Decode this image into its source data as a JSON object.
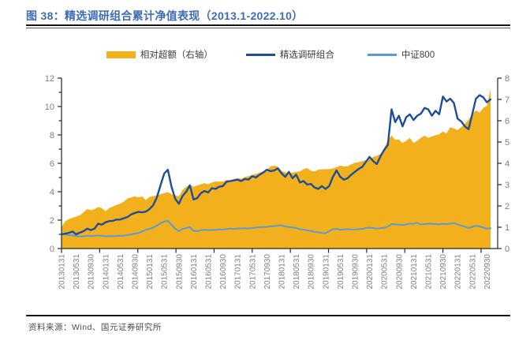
{
  "figure": {
    "title": "图 38：精选调研组合累计净值表现（2013.1-2022.10）",
    "source": "资料来源：Wind、国元证券研究所"
  },
  "colors": {
    "title_blue": "#3E6DB5",
    "excess_area": "#F2B01C",
    "portfolio_line": "#1F4E99",
    "csi800_line": "#5B9BD5",
    "axis_line": "#262626",
    "axis_text": "#7f7f7f"
  },
  "legend": [
    {
      "label": "相对超额（右轴）",
      "type": "area",
      "color": "#F2B01C"
    },
    {
      "label": "精选调研组合",
      "type": "line",
      "color": "#1F4E99"
    },
    {
      "label": "中证800",
      "type": "line",
      "color": "#5B9BD5"
    }
  ],
  "chart_data": {
    "type": "area",
    "title": "精选调研组合累计净值表现（2013.1-2022.10）",
    "x_frequency": "monthly, 2013-01 through 2022-10",
    "x_tick_labels": [
      "20130131",
      "20130531",
      "20130930",
      "20140131",
      "20140531",
      "20140930",
      "20150131",
      "20150531",
      "20150930",
      "20160131",
      "20160531",
      "20160930",
      "20170131",
      "20170531",
      "20170930",
      "20180131",
      "20180531",
      "20180930",
      "20190131",
      "20190531",
      "20190930",
      "20200131",
      "20200531",
      "20200930",
      "20210131",
      "20210531",
      "20210930",
      "20220131",
      "20220531",
      "20220930"
    ],
    "left_axis": {
      "min": 0,
      "max": 12,
      "tick_labels": [
        0,
        2,
        4,
        6,
        8,
        10,
        12
      ]
    },
    "right_axis": {
      "min": 0,
      "max": 8,
      "tick_labels": [
        0,
        1,
        2,
        3,
        4,
        5,
        6,
        7,
        8
      ]
    },
    "grid": false,
    "legend_position": "top-center",
    "series": [
      {
        "name": "相对超额（右轴）",
        "type": "area",
        "axis": "right",
        "color": "#F2B01C",
        "values": [
          1.0,
          1.28,
          1.38,
          1.44,
          1.5,
          1.56,
          1.7,
          1.85,
          1.8,
          1.85,
          1.95,
          1.9,
          1.75,
          1.9,
          1.97,
          2.05,
          2.1,
          2.2,
          2.35,
          2.4,
          2.45,
          2.4,
          2.45,
          2.28,
          2.42,
          2.46,
          2.5,
          2.55,
          2.6,
          2.65,
          2.55,
          2.5,
          2.45,
          2.75,
          2.9,
          3.0,
          2.9,
          2.96,
          3.02,
          3.07,
          3.02,
          3.1,
          3.15,
          3.14,
          3.15,
          3.22,
          3.2,
          3.26,
          3.3,
          3.28,
          3.36,
          3.4,
          3.45,
          3.5,
          3.56,
          3.62,
          3.7,
          3.85,
          3.9,
          3.84,
          3.65,
          3.58,
          3.54,
          3.56,
          3.6,
          3.62,
          3.72,
          3.78,
          3.65,
          3.62,
          3.7,
          3.72,
          3.72,
          3.73,
          3.76,
          3.82,
          3.9,
          3.85,
          3.86,
          3.95,
          4.03,
          4.05,
          4.1,
          4.15,
          4.2,
          4.3,
          4.35,
          4.45,
          4.7,
          5.1,
          5.3,
          5.1,
          5.12,
          4.95,
          5.06,
          5.2,
          4.95,
          5.06,
          5.2,
          5.3,
          5.2,
          5.26,
          5.32,
          5.36,
          5.5,
          5.4,
          5.7,
          5.64,
          5.56,
          5.7,
          5.86,
          6.05,
          6.3,
          6.48,
          6.38,
          6.6,
          6.7,
          7.5
        ]
      },
      {
        "name": "精选调研组合",
        "type": "line",
        "axis": "left",
        "color": "#1F4E99",
        "values": [
          1.0,
          1.05,
          1.1,
          1.2,
          1.0,
          1.12,
          1.22,
          1.4,
          1.3,
          1.4,
          1.75,
          1.68,
          1.85,
          1.93,
          1.95,
          2.04,
          2.04,
          2.13,
          2.22,
          2.4,
          2.5,
          2.58,
          2.55,
          2.6,
          2.78,
          3.05,
          3.6,
          4.45,
          5.28,
          5.55,
          4.35,
          3.5,
          3.15,
          3.7,
          4.0,
          4.45,
          3.45,
          3.55,
          3.9,
          4.05,
          3.95,
          4.25,
          4.2,
          4.35,
          4.4,
          4.7,
          4.75,
          4.8,
          4.85,
          4.75,
          4.9,
          4.85,
          5.1,
          5.0,
          5.2,
          5.35,
          5.55,
          5.45,
          5.5,
          5.65,
          5.3,
          5.05,
          5.4,
          4.95,
          5.2,
          4.65,
          4.75,
          4.5,
          4.55,
          4.3,
          4.2,
          4.4,
          4.2,
          4.4,
          5.05,
          5.5,
          5.05,
          4.85,
          4.95,
          5.2,
          5.4,
          5.6,
          5.75,
          6.1,
          6.45,
          6.15,
          5.95,
          6.5,
          6.95,
          7.3,
          9.8,
          8.9,
          9.35,
          8.6,
          9.25,
          9.45,
          9.05,
          9.35,
          9.5,
          9.9,
          9.8,
          9.35,
          9.7,
          9.45,
          10.7,
          10.35,
          10.55,
          10.25,
          9.15,
          8.95,
          8.6,
          8.4,
          9.45,
          10.55,
          10.8,
          10.65,
          10.3,
          10.5
        ]
      },
      {
        "name": "中证800",
        "type": "line",
        "axis": "left",
        "color": "#5B9BD5",
        "values": [
          1.0,
          0.98,
          0.95,
          0.93,
          0.88,
          0.84,
          0.86,
          0.9,
          0.88,
          0.9,
          0.92,
          0.88,
          0.86,
          0.88,
          0.87,
          0.88,
          0.89,
          0.9,
          0.95,
          1.0,
          1.05,
          1.1,
          1.2,
          1.32,
          1.38,
          1.48,
          1.62,
          1.78,
          1.9,
          1.95,
          1.67,
          1.4,
          1.22,
          1.38,
          1.45,
          1.5,
          1.25,
          1.22,
          1.3,
          1.32,
          1.3,
          1.3,
          1.32,
          1.35,
          1.34,
          1.36,
          1.4,
          1.38,
          1.4,
          1.42,
          1.43,
          1.42,
          1.44,
          1.48,
          1.5,
          1.52,
          1.53,
          1.56,
          1.58,
          1.62,
          1.63,
          1.55,
          1.52,
          1.48,
          1.45,
          1.36,
          1.33,
          1.28,
          1.25,
          1.17,
          1.15,
          1.1,
          1.08,
          1.22,
          1.36,
          1.38,
          1.32,
          1.35,
          1.36,
          1.34,
          1.35,
          1.36,
          1.38,
          1.45,
          1.47,
          1.45,
          1.4,
          1.44,
          1.46,
          1.54,
          1.72,
          1.7,
          1.68,
          1.66,
          1.7,
          1.76,
          1.74,
          1.8,
          1.7,
          1.72,
          1.74,
          1.75,
          1.72,
          1.7,
          1.74,
          1.72,
          1.76,
          1.78,
          1.7,
          1.62,
          1.54,
          1.45,
          1.52,
          1.6,
          1.55,
          1.48,
          1.4,
          1.42
        ]
      }
    ]
  }
}
